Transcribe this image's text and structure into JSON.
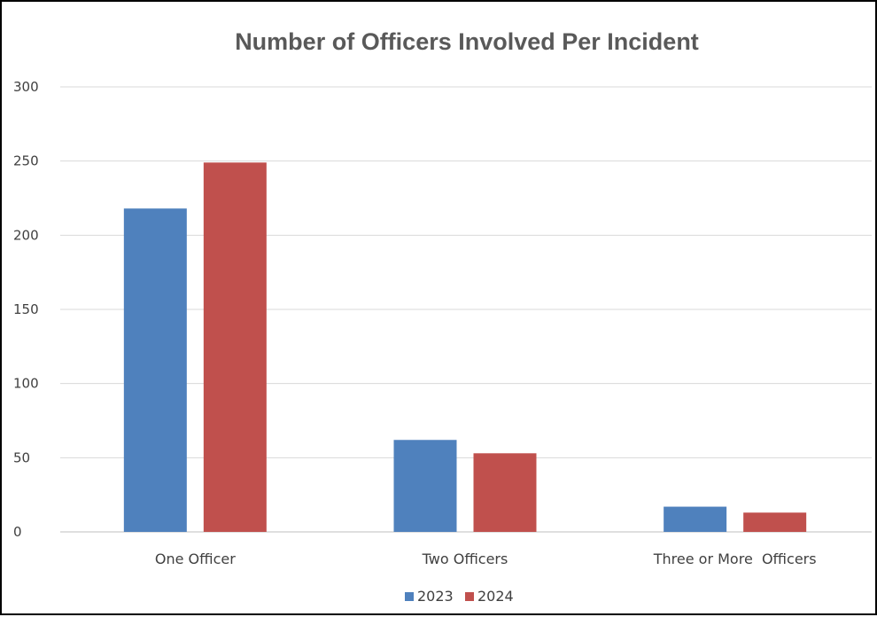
{
  "chart_data": {
    "type": "bar",
    "title": "Number of Officers Involved Per Incident",
    "xlabel": "",
    "ylabel": "",
    "categories": [
      "One Officer",
      "Two Officers",
      "Three or More  Officers"
    ],
    "series": [
      {
        "name": "2023",
        "color": "#4f81bd",
        "values": [
          218,
          62,
          17
        ]
      },
      {
        "name": "2024",
        "color": "#c0504d",
        "values": [
          249,
          53,
          13
        ]
      }
    ],
    "ylim": [
      0,
      300
    ],
    "yticks": [
      0,
      50,
      100,
      150,
      200,
      250,
      300
    ],
    "grid": true,
    "legend_position": "bottom"
  }
}
